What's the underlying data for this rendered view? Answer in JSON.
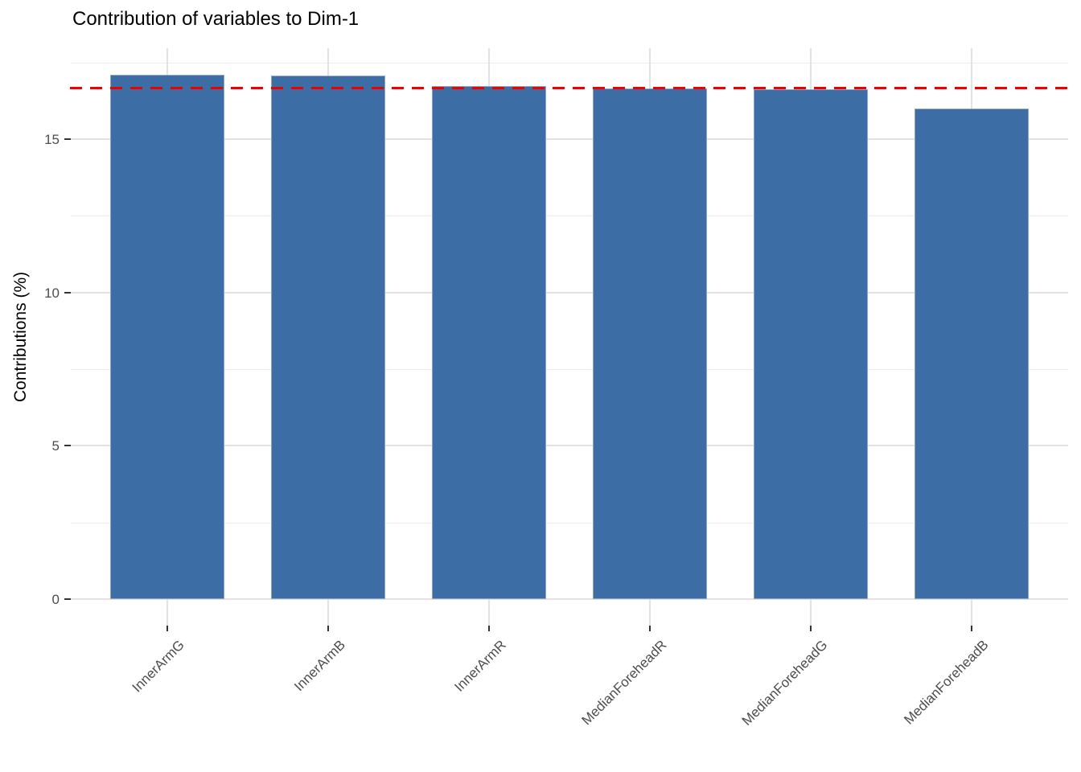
{
  "chart": {
    "title": "Contribution of variables to Dim-1",
    "y_axis_title": "Contributions (%)"
  },
  "chart_data": {
    "type": "bar",
    "title": "Contribution of variables to Dim-1",
    "xlabel": "",
    "ylabel": "Contributions (%)",
    "categories": [
      "InnerArmG",
      "InnerArmB",
      "InnerArmR",
      "MedianForeheadR",
      "MedianForeheadG",
      "MedianForeheadB"
    ],
    "values": [
      17.11,
      17.08,
      16.73,
      16.66,
      16.62,
      15.99
    ],
    "y_major_ticks": [
      0,
      5,
      10,
      15
    ],
    "y_minor_ticks": [
      2.5,
      7.5,
      12.5,
      17.5
    ],
    "ylim": [
      0,
      17.97
    ],
    "grid": true,
    "legend": "none",
    "x_label_angle": 45,
    "reference_line": {
      "y": 16.67,
      "style": "dashed",
      "color": "#ee0000"
    },
    "colors": {
      "bar_fill": "#3c6ea5",
      "bar_border": "#8ca6c4",
      "grid_major": "#e2e2e2",
      "grid_minor": "#ececec",
      "tick_label": "#4d4d4d",
      "axis_tick": "#333333",
      "background": "#ffffff"
    }
  }
}
